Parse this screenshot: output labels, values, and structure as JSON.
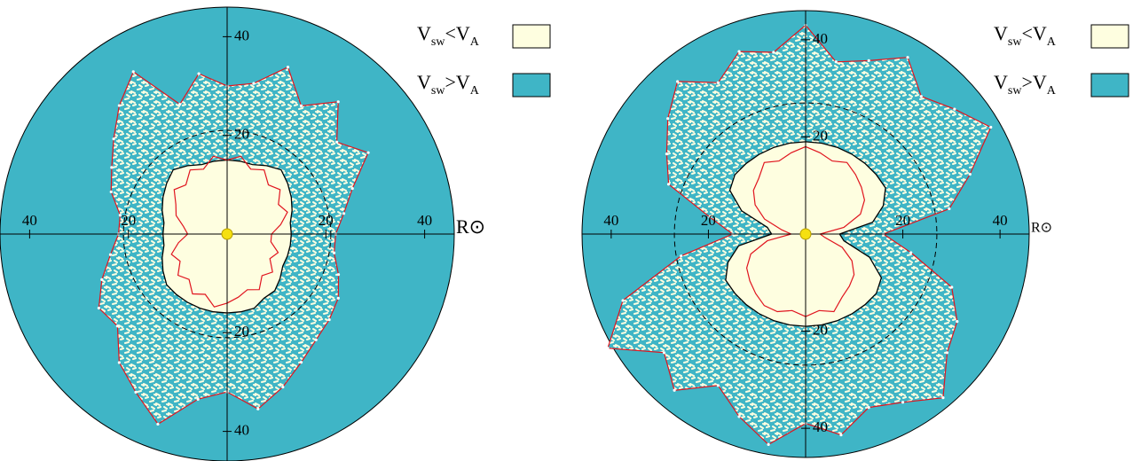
{
  "chart_data": [
    {
      "type": "polar",
      "rlim": [
        0,
        46
      ],
      "rticks": [
        20,
        40
      ],
      "unit_label": "R⊙",
      "theta": [
        0,
        10,
        20,
        30,
        40,
        50,
        60,
        70,
        80,
        90,
        100,
        110,
        120,
        130,
        140,
        150,
        160,
        170,
        180,
        190,
        200,
        210,
        220,
        230,
        240,
        250,
        260,
        270,
        280,
        290,
        300,
        310,
        320,
        330,
        340,
        350
      ],
      "dashed_r": 21,
      "contour": {
        "color": "#000000",
        "values": [
          13,
          13,
          14,
          15,
          16,
          17,
          16,
          15,
          15,
          15,
          15,
          15,
          16,
          17,
          16,
          15,
          14,
          13,
          13,
          13,
          14,
          15,
          16,
          16,
          16,
          16,
          16,
          16,
          16,
          16,
          15,
          15,
          14,
          13,
          13,
          13
        ]
      },
      "series": [
        {
          "color": "#e0141e",
          "values": [
            22,
            24,
            27,
            33,
            29,
            35,
            30,
            36,
            31,
            30,
            33,
            28,
            38,
            34,
            30,
            27,
            25,
            22,
            22,
            24,
            27,
            30,
            29,
            34,
            37,
            41,
            34,
            32,
            36,
            33,
            30,
            28,
            27,
            26,
            24,
            22
          ]
        },
        {
          "color": "#e0141e",
          "values": [
            9,
            11,
            13,
            12,
            14,
            13,
            15,
            14,
            16,
            15,
            16,
            14,
            15,
            13,
            14,
            12,
            11,
            9,
            8,
            10,
            12,
            11,
            13,
            12,
            14,
            13,
            15,
            14,
            13,
            12,
            13,
            11,
            12,
            10,
            11,
            9
          ]
        }
      ],
      "legend": [
        {
          "label": [
            "V",
            "sw",
            "<V",
            "A"
          ],
          "color": "#fefee0"
        },
        {
          "label": [
            "V",
            "sw",
            ">V",
            "A"
          ],
          "color": "#3fb5c6"
        }
      ]
    },
    {
      "type": "polar",
      "rlim": [
        0,
        46
      ],
      "rticks": [
        20,
        40
      ],
      "unit_label": "R⊙",
      "theta": [
        0,
        10,
        20,
        30,
        40,
        50,
        60,
        70,
        80,
        90,
        100,
        110,
        120,
        130,
        140,
        150,
        160,
        170,
        180,
        190,
        200,
        210,
        220,
        230,
        240,
        250,
        260,
        270,
        280,
        290,
        300,
        310,
        320,
        330,
        340,
        350
      ],
      "dashed_r": 27,
      "contour": {
        "color": "#000000",
        "values": [
          7,
          14,
          17,
          19,
          19,
          19,
          19,
          19,
          19,
          19,
          19,
          19,
          19,
          19,
          19,
          18,
          14,
          8,
          7,
          14,
          17,
          19,
          19,
          19,
          19,
          19,
          19,
          19,
          19,
          19,
          19,
          19,
          19,
          18,
          14,
          8
        ]
      },
      "series": [
        {
          "color": "#e0141e",
          "values": [
            16,
            30,
            36,
            44,
            40,
            37,
            42,
            38,
            36,
            43,
            38,
            40,
            36,
            41,
            37,
            33,
            30,
            20,
            15,
            26,
            40,
            47,
            38,
            42,
            36,
            40,
            44,
            39,
            42,
            38,
            40,
            44,
            38,
            36,
            32,
            22
          ]
        },
        {
          "color": "#e0141e",
          "values": [
            3,
            8,
            12,
            14,
            15,
            16,
            17,
            16,
            17,
            18,
            17,
            16,
            17,
            15,
            14,
            12,
            9,
            5,
            3,
            8,
            12,
            14,
            15,
            16,
            17,
            17,
            16,
            17,
            16,
            17,
            15,
            14,
            13,
            11,
            8,
            4
          ]
        }
      ],
      "legend": [
        {
          "label": [
            "V",
            "sw",
            "<V",
            "A"
          ],
          "color": "#fefee0"
        },
        {
          "label": [
            "V",
            "sw",
            ">V",
            "A"
          ],
          "color": "#3fb5c6"
        }
      ]
    }
  ]
}
